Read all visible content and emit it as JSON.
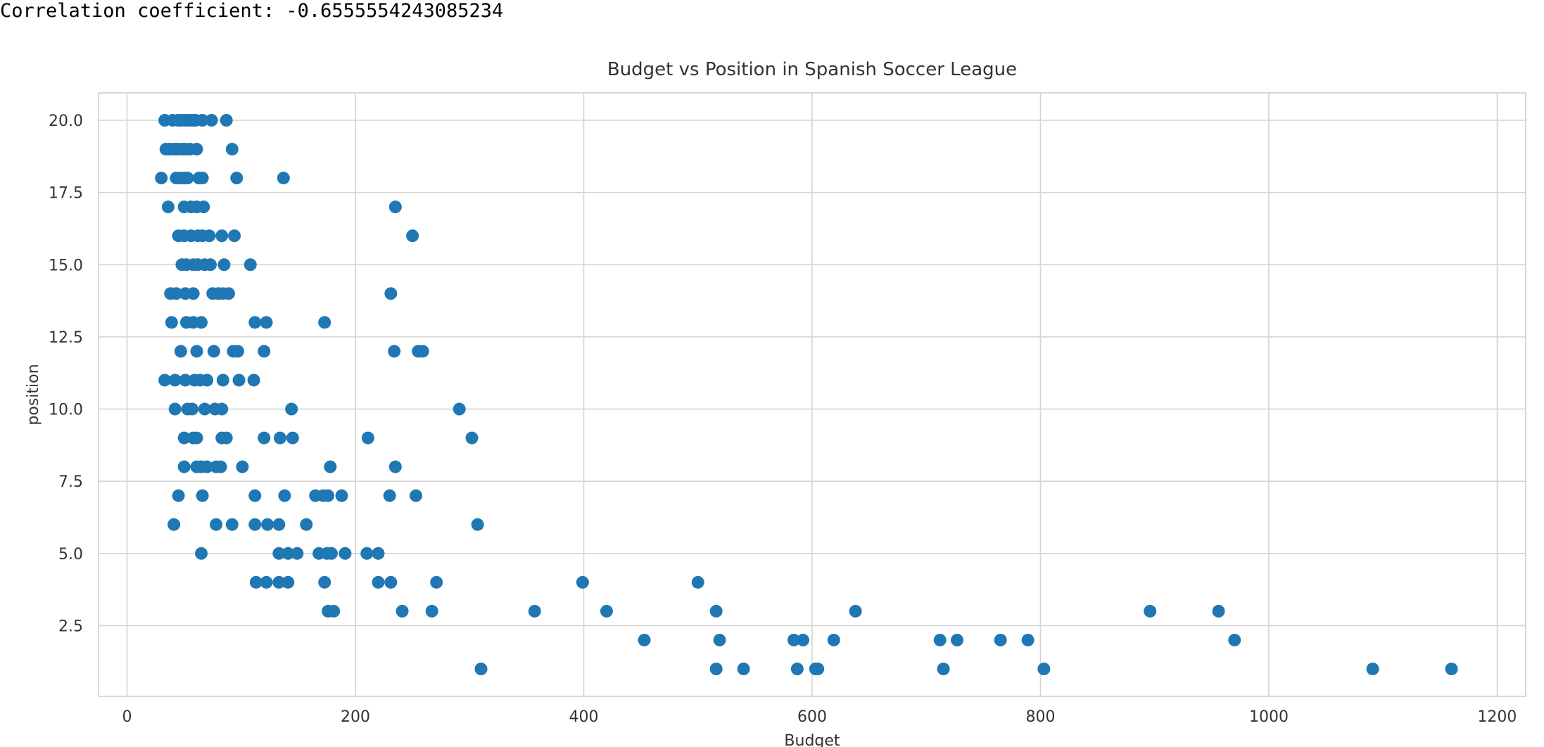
{
  "output": {
    "text": "Correlation coefficient: -0.6555554243085234"
  },
  "chart_data": {
    "type": "scatter",
    "title": "Budget vs Position in Spanish Soccer League",
    "xlabel": "Budget",
    "ylabel": "position",
    "xlim": [
      -25,
      1225
    ],
    "ylim": [
      0.05,
      20.95
    ],
    "xticks": [
      0,
      200,
      400,
      600,
      800,
      1000,
      1200
    ],
    "xtick_labels": [
      "0",
      "200",
      "400",
      "600",
      "800",
      "1000",
      "1200"
    ],
    "yticks": [
      2.5,
      5.0,
      7.5,
      10.0,
      12.5,
      15.0,
      17.5,
      20.0
    ],
    "ytick_labels": [
      "2.5",
      "5.0",
      "7.5",
      "10.0",
      "12.5",
      "15.0",
      "17.5",
      "20.0"
    ],
    "grid": true,
    "marker_color": "#1f77b4",
    "series": [
      {
        "points": [
          [
            33,
            20
          ],
          [
            40,
            20
          ],
          [
            45,
            20
          ],
          [
            48,
            20
          ],
          [
            51,
            20
          ],
          [
            54,
            20
          ],
          [
            57,
            20
          ],
          [
            60,
            20
          ],
          [
            66,
            20
          ],
          [
            74,
            20
          ],
          [
            87,
            20
          ],
          [
            34,
            19
          ],
          [
            37,
            19
          ],
          [
            41,
            19
          ],
          [
            44,
            19
          ],
          [
            48,
            19
          ],
          [
            51,
            19
          ],
          [
            55,
            19
          ],
          [
            61,
            19
          ],
          [
            92,
            19
          ],
          [
            30,
            18
          ],
          [
            43,
            18
          ],
          [
            47,
            18
          ],
          [
            50,
            18
          ],
          [
            53,
            18
          ],
          [
            63,
            18
          ],
          [
            66,
            18
          ],
          [
            96,
            18
          ],
          [
            137,
            18
          ],
          [
            36,
            17
          ],
          [
            50,
            17
          ],
          [
            56,
            17
          ],
          [
            61,
            17
          ],
          [
            67,
            17
          ],
          [
            235,
            17
          ],
          [
            45,
            16
          ],
          [
            50,
            16
          ],
          [
            56,
            16
          ],
          [
            62,
            16
          ],
          [
            66,
            16
          ],
          [
            72,
            16
          ],
          [
            83,
            16
          ],
          [
            94,
            16
          ],
          [
            250,
            16
          ],
          [
            48,
            15
          ],
          [
            52,
            15
          ],
          [
            58,
            15
          ],
          [
            62,
            15
          ],
          [
            68,
            15
          ],
          [
            73,
            15
          ],
          [
            85,
            15
          ],
          [
            108,
            15
          ],
          [
            38,
            14
          ],
          [
            43,
            14
          ],
          [
            51,
            14
          ],
          [
            58,
            14
          ],
          [
            75,
            14
          ],
          [
            80,
            14
          ],
          [
            84,
            14
          ],
          [
            89,
            14
          ],
          [
            231,
            14
          ],
          [
            39,
            13
          ],
          [
            52,
            13
          ],
          [
            58,
            13
          ],
          [
            65,
            13
          ],
          [
            112,
            13
          ],
          [
            122,
            13
          ],
          [
            173,
            13
          ],
          [
            47,
            12
          ],
          [
            61,
            12
          ],
          [
            76,
            12
          ],
          [
            93,
            12
          ],
          [
            97,
            12
          ],
          [
            120,
            12
          ],
          [
            234,
            12
          ],
          [
            255,
            12
          ],
          [
            259,
            12
          ],
          [
            33,
            11
          ],
          [
            42,
            11
          ],
          [
            51,
            11
          ],
          [
            59,
            11
          ],
          [
            64,
            11
          ],
          [
            70,
            11
          ],
          [
            84,
            11
          ],
          [
            98,
            11
          ],
          [
            111,
            11
          ],
          [
            42,
            10
          ],
          [
            53,
            10
          ],
          [
            57,
            10
          ],
          [
            68,
            10
          ],
          [
            77,
            10
          ],
          [
            83,
            10
          ],
          [
            144,
            10
          ],
          [
            291,
            10
          ],
          [
            50,
            9
          ],
          [
            58,
            9
          ],
          [
            61,
            9
          ],
          [
            83,
            9
          ],
          [
            87,
            9
          ],
          [
            120,
            9
          ],
          [
            134,
            9
          ],
          [
            145,
            9
          ],
          [
            211,
            9
          ],
          [
            302,
            9
          ],
          [
            50,
            8
          ],
          [
            61,
            8
          ],
          [
            65,
            8
          ],
          [
            70,
            8
          ],
          [
            78,
            8
          ],
          [
            82,
            8
          ],
          [
            101,
            8
          ],
          [
            178,
            8
          ],
          [
            235,
            8
          ],
          [
            45,
            7
          ],
          [
            66,
            7
          ],
          [
            112,
            7
          ],
          [
            138,
            7
          ],
          [
            165,
            7
          ],
          [
            172,
            7
          ],
          [
            176,
            7
          ],
          [
            188,
            7
          ],
          [
            230,
            7
          ],
          [
            253,
            7
          ],
          [
            41,
            6
          ],
          [
            78,
            6
          ],
          [
            92,
            6
          ],
          [
            112,
            6
          ],
          [
            123,
            6
          ],
          [
            133,
            6
          ],
          [
            157,
            6
          ],
          [
            307,
            6
          ],
          [
            65,
            5
          ],
          [
            133,
            5
          ],
          [
            141,
            5
          ],
          [
            149,
            5
          ],
          [
            168,
            5
          ],
          [
            175,
            5
          ],
          [
            179,
            5
          ],
          [
            191,
            5
          ],
          [
            210,
            5
          ],
          [
            220,
            5
          ],
          [
            113,
            4
          ],
          [
            122,
            4
          ],
          [
            133,
            4
          ],
          [
            141,
            4
          ],
          [
            173,
            4
          ],
          [
            220,
            4
          ],
          [
            231,
            4
          ],
          [
            271,
            4
          ],
          [
            399,
            4
          ],
          [
            500,
            4
          ],
          [
            176,
            3
          ],
          [
            181,
            3
          ],
          [
            241,
            3
          ],
          [
            267,
            3
          ],
          [
            357,
            3
          ],
          [
            420,
            3
          ],
          [
            516,
            3
          ],
          [
            638,
            3
          ],
          [
            896,
            3
          ],
          [
            956,
            3
          ],
          [
            453,
            2
          ],
          [
            519,
            2
          ],
          [
            584,
            2
          ],
          [
            592,
            2
          ],
          [
            619,
            2
          ],
          [
            712,
            2
          ],
          [
            727,
            2
          ],
          [
            765,
            2
          ],
          [
            789,
            2
          ],
          [
            970,
            2
          ],
          [
            310,
            1
          ],
          [
            516,
            1
          ],
          [
            540,
            1
          ],
          [
            587,
            1
          ],
          [
            603,
            1
          ],
          [
            605,
            1
          ],
          [
            715,
            1
          ],
          [
            803,
            1
          ],
          [
            1091,
            1
          ],
          [
            1160,
            1
          ]
        ]
      }
    ]
  }
}
